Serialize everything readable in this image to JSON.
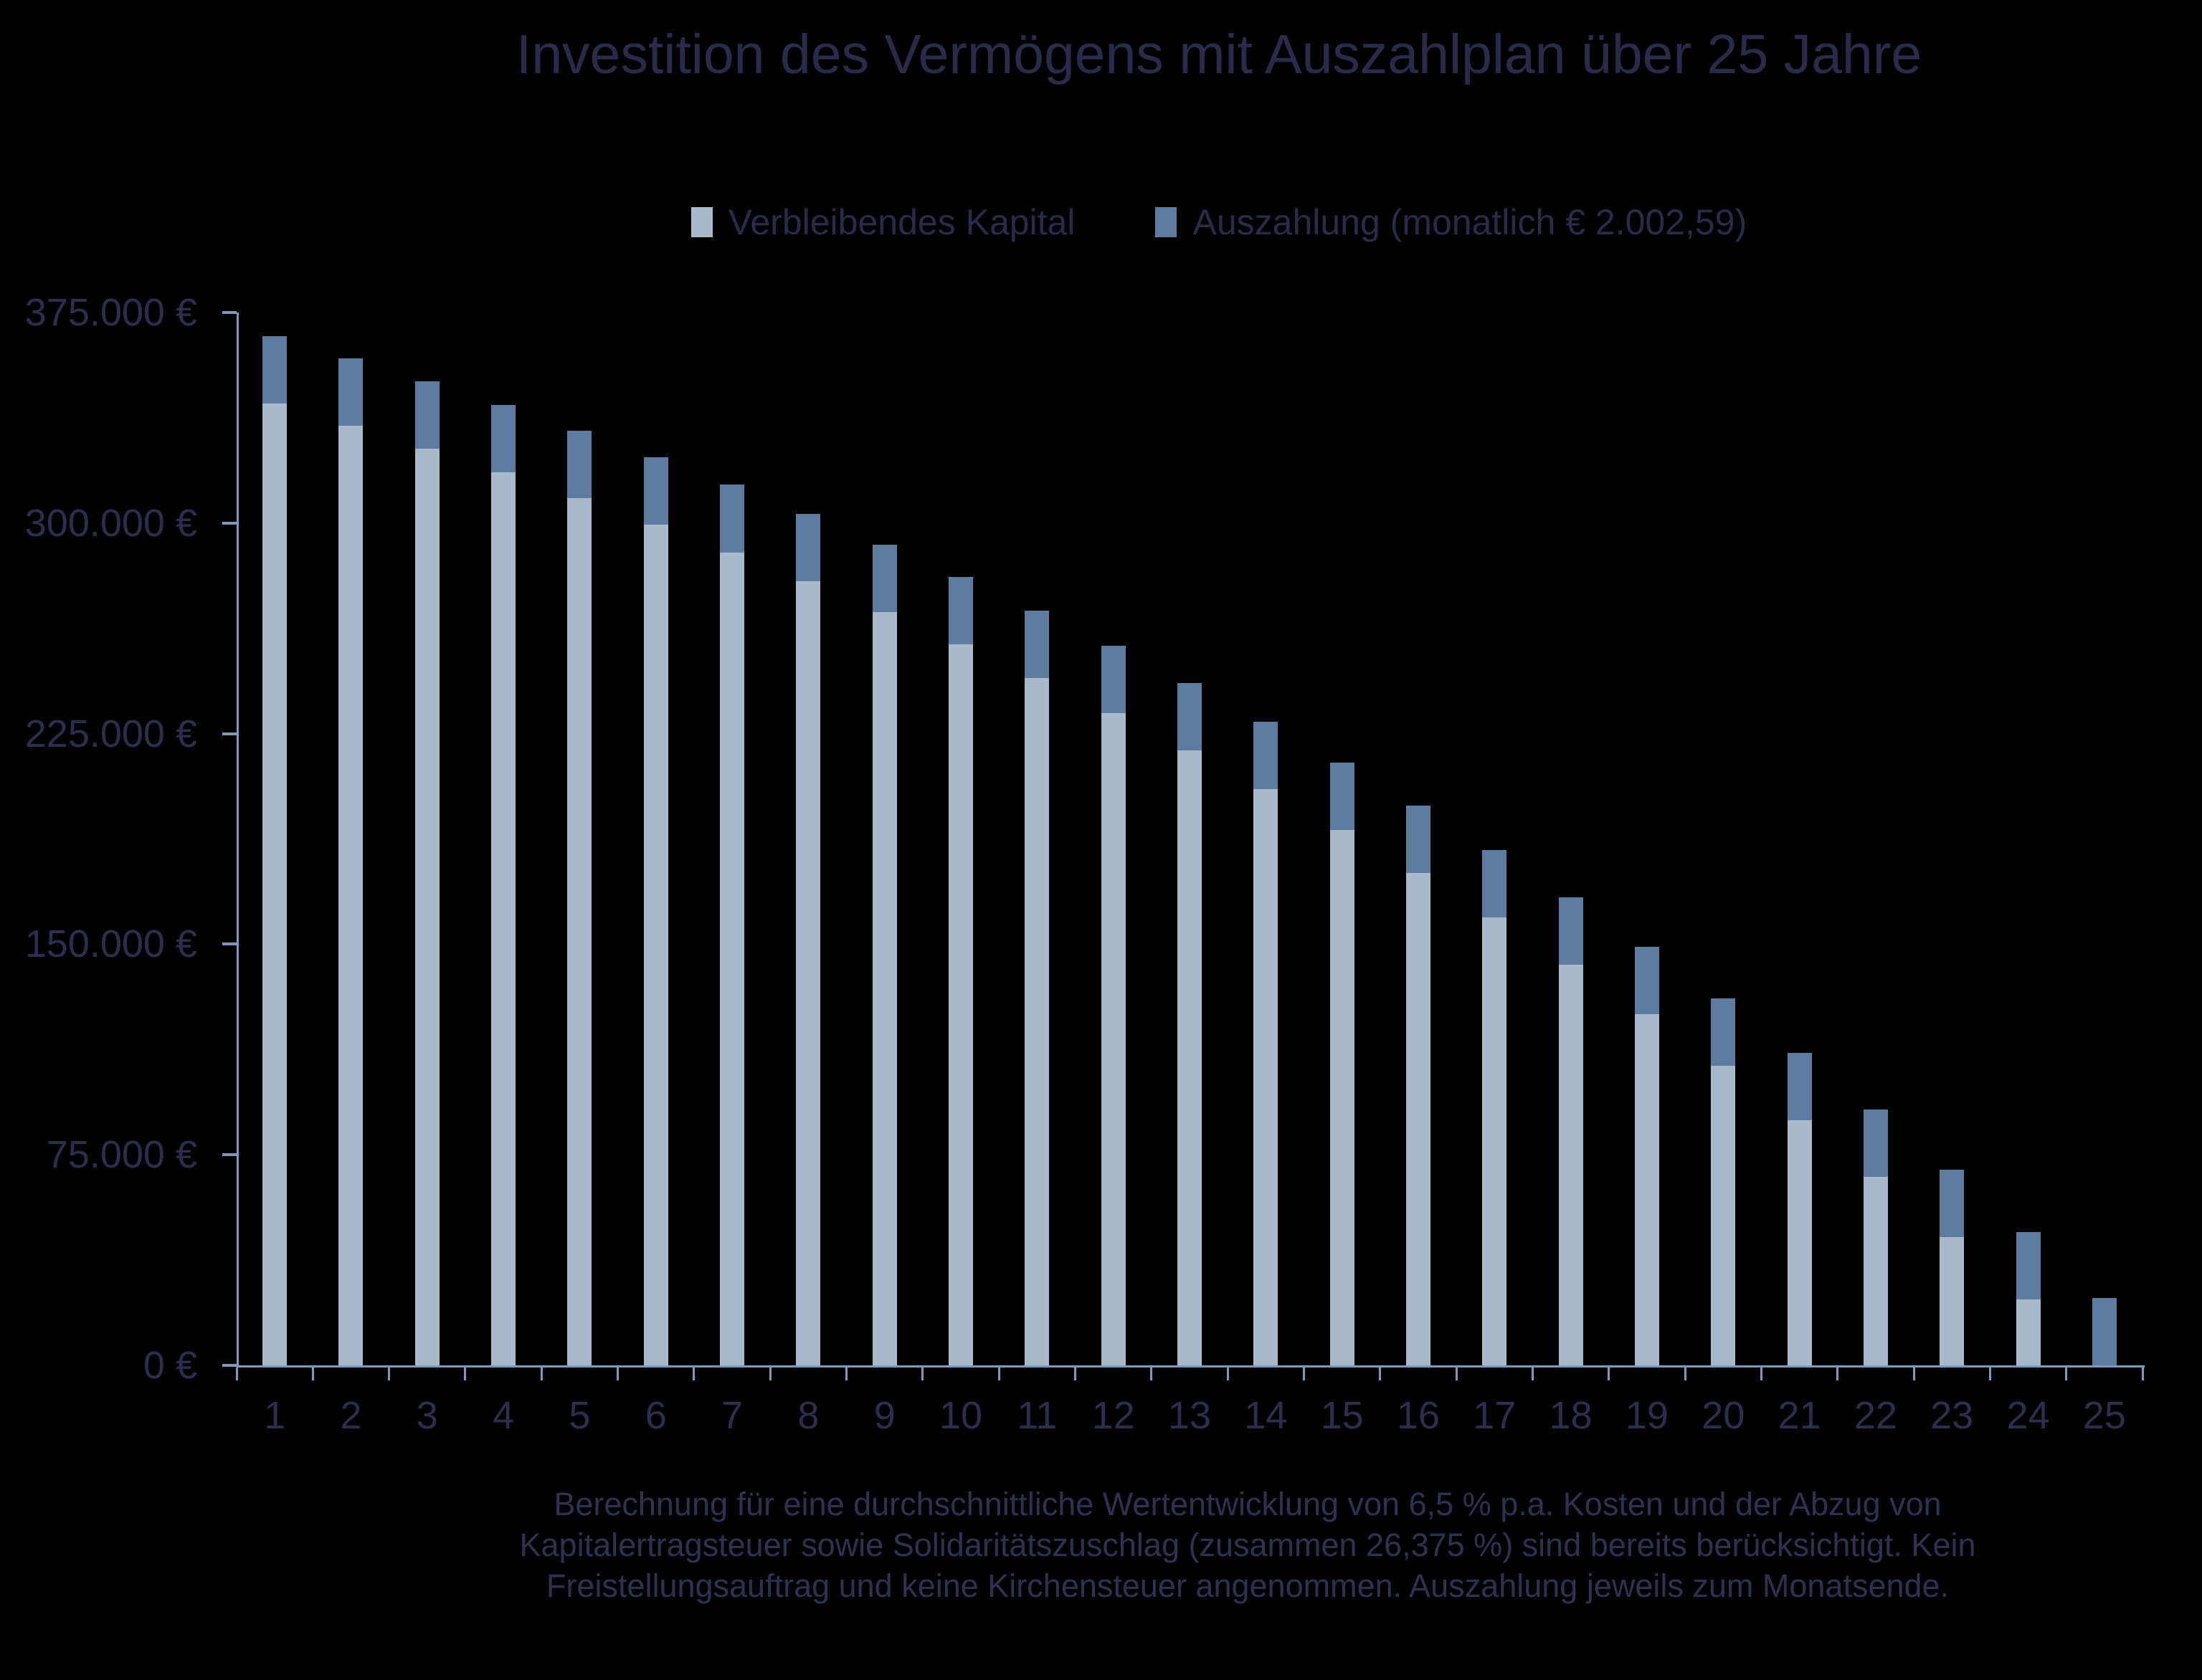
{
  "title": "Investition des Vermögens mit Auszahlplan über 25 Jahre",
  "legend": [
    {
      "label": "Verbleibendes Kapital",
      "color": "#a9bacd"
    },
    {
      "label": "Auszahlung (monatlich € 2.002,59)",
      "color": "#5d7ca0"
    }
  ],
  "footnote": {
    "lines": [
      "Berechnung für eine durchschnittliche Wertentwicklung von 6,5 % p.a. Kosten und der Abzug von",
      "Kapitalertragsteuer sowie Solidaritätszuschlag (zusammen 26,375 %) sind bereits berücksichtigt. Kein",
      "Freistellungsauftrag und keine Kirchensteuer angenommen. Auszahlung jeweils zum Monatsende."
    ]
  },
  "colors": {
    "background": "#000000",
    "remaining_capital": "#a9bacd",
    "payout": "#5d7ca0",
    "axis": "#7e99bb",
    "text": "#282c4a"
  },
  "chart_data": {
    "type": "bar",
    "stacked": true,
    "title": "Investition des Vermögens mit Auszahlplan über 25 Jahre",
    "xlabel": "",
    "ylabel": "",
    "grid": false,
    "legend_position": "top",
    "categories": [
      1,
      2,
      3,
      4,
      5,
      6,
      7,
      8,
      9,
      10,
      11,
      12,
      13,
      14,
      15,
      16,
      17,
      18,
      19,
      20,
      21,
      22,
      23,
      24,
      25
    ],
    "series": [
      {
        "name": "Verbleibendes Kapital",
        "color": "#a9bacd",
        "values": [
          342557,
          334750,
          326561,
          317971,
          308961,
          299511,
          289598,
          279200,
          268294,
          256854,
          244855,
          232268,
          219066,
          205217,
          190691,
          175455,
          159472,
          142708,
          125124,
          106680,
          87334,
          67041,
          45756,
          23429,
          0
        ]
      },
      {
        "name": "Auszahlung (monatlich € 2.002,59)",
        "color": "#5d7ca0",
        "values": [
          24031,
          24031,
          24031,
          24031,
          24031,
          24031,
          24031,
          24031,
          24031,
          24031,
          24031,
          24031,
          24031,
          24031,
          24031,
          24031,
          24031,
          24031,
          24031,
          24031,
          24031,
          24031,
          24031,
          24031,
          24031
        ]
      }
    ],
    "y_axis": {
      "min": 0,
      "max": 375000,
      "tick_values": [
        0,
        75000,
        150000,
        225000,
        300000,
        375000
      ],
      "tick_labels": [
        "0 €",
        "75.000 €",
        "150.000 €",
        "225.000 €",
        "300.000 €",
        "375.000 €"
      ]
    }
  }
}
